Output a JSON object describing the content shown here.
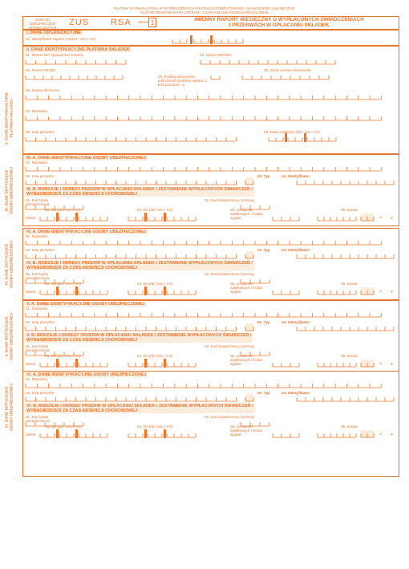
{
  "colors": {
    "accent": "#e8762c",
    "fill": "#fdebdc"
  },
  "top_note": {
    "line1": "PŁATNIK WYPEŁNIA POLA W WYZNACZONYCH KRATKACH KOMPUTEROWO, NA MASZYNIE LUB RĘCZNIE",
    "line2": "DUŻYMI DRUKOWANYMI LITERAMI, CZARNYM LUB NIEBIESKIM KOLOREM"
  },
  "header": {
    "institution_line1": "ZAKŁAD UBEZPIECZEŃ",
    "institution_line2": "SPOŁECZNYCH",
    "form_code": "ZUS",
    "form_name": "RSA",
    "page_label": "strona",
    "page_number": "1",
    "title_line1": "IMIENNY RAPORT MIESIĘCZNY O WYPŁACONYCH ŚWIADCZENIACH",
    "title_line2": "I PRZERWACH W OPŁACANIU SKŁADEK"
  },
  "section_i": {
    "title": "I. DANE ORGANIZACYJNE",
    "field_01": "01. Identyfikator raportu (numer / mm / rrrr)"
  },
  "section_ii": {
    "title": "II. DANE IDENTYFIKACYJNE PŁATNIKA SKŁADEK",
    "side_label_line1": "II. DANE IDENTYFIKACYJNE",
    "side_label_line2": "PŁATNIKA SKŁADEK",
    "field_01": "01. Numer NIP (wpisać bez kresek)",
    "field_02": "02. Numer REGON",
    "field_03": "03. Numer PESEL",
    "field_04_line1": "04. Rodzaj dokumentu",
    "field_04_line2": "jeśli dowód osobisty, wpisać 1,",
    "field_04_line3": "jeśli paszport - 2",
    "field_05": "05. Seria i numer dokumentu",
    "field_06": "06. Nazwa skrócona",
    "field_07": "07. Nazwisko",
    "field_08": "08. Imię pierwsze",
    "field_09": "09. Data urodzenia (dd / mm / rrrr)"
  },
  "persons": [
    {
      "a_title": "III. A. DANE IDENTYFIKACYJNE OSOBY UBEZPIECZONEJ",
      "b_title_line1": "III. B. RODZAJE I OKRESY PRZERW W OPŁACANIU SKŁADEK I ZESTAWIENIE WYPŁACONYCH ŚWIADCZEŃ /",
      "b_title_line2": "WYNAGRODZEŃ ZA CZAS ABSENCJI CHOROBOWEJ",
      "side_label_line1": "III. DANE DOTYCZĄCE",
      "side_label_line2": "OSOBY UBEZPIECZONEJ"
    },
    {
      "a_title": "IV. A. DANE IDENTYFIKACYJNE OSOBY UBEZPIECZONEJ",
      "b_title_line1": "IV. B. RODZAJE I OKRESY PRZERW W OPŁACANIU SKŁADEK I ZESTAWIENIE WYPŁACONYCH ŚWIADCZEŃ /",
      "b_title_line2": "WYNAGRODZEŃ ZA CZAS ABSENCJI CHOROBOWEJ",
      "side_label_line1": "IV. DANE DOTYCZĄCE",
      "side_label_line2": "OSOBY UBEZPIECZONEJ"
    },
    {
      "a_title": "V. A. DANE IDENTYFIKACYJNE OSOBY UBEZPIECZONEJ",
      "b_title_line1": "V. B. RODZAJE I OKRESY PRZERW W OPŁACANIU SKŁADEK I ZESTAWIENIE WYPŁACONYCH ŚWIADCZEŃ /",
      "b_title_line2": "WYNAGRODZEŃ ZA CZAS ABSENCJI CHOROBOWEJ",
      "side_label_line1": "V. DANE DOTYCZĄCE",
      "side_label_line2": "OSOBY UBEZPIECZONEJ"
    },
    {
      "a_title": "VI. A. DANE IDENTYFIKACYJNE OSOBY UBEZPIECZONEJ",
      "b_title_line1": "VI. B. RODZAJE I OKRESY PRZERW W OPŁACANIU SKŁADEK I ZESTAWIENIE WYPŁACONYCH ŚWIADCZEŃ /",
      "b_title_line2": "WYNAGRODZEŃ ZA CZAS ABSENCJI CHOROBOWEJ",
      "side_label_line1": "VI. DANE DOTYCZĄCE",
      "side_label_line2": "OSOBY UBEZPIECZONEJ"
    }
  ],
  "person_fields": {
    "f01": "01. Nazwisko",
    "f02": "02. Imię pierwsze",
    "f03": "03. Typ",
    "f04": "04. Identyfikator",
    "b01_line1": "01. Kod tytułu",
    "b01_line2": "ubezpieczenia",
    "b02": "02. Kod świadczenia / przerwy",
    "b03": "03. Od (dd / mm / rrrr)",
    "b04": "04. Do (dd / mm / rrrr)",
    "b05_line1": "05. Liczba dni",
    "b05_line2": "zasiłkowych / liczba",
    "b05_line3": "wypłat",
    "b06": "06. Kwota",
    "okres": "Okres",
    "dash": "-",
    "currency": "zł",
    "grosze": "gr"
  }
}
